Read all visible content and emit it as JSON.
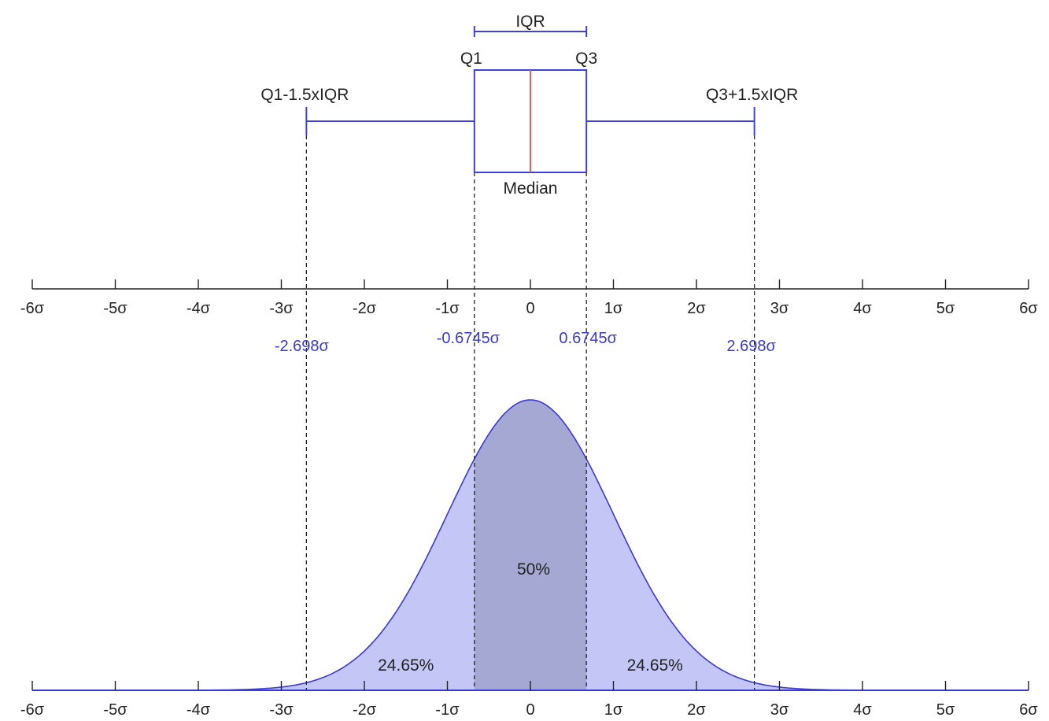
{
  "colors": {
    "box": "#3f3fe6",
    "median": "#e06060",
    "tail_fill": "#c4c6f5",
    "iqr_fill": "#a6a8d4",
    "curve": "#3a3ad6",
    "axis": "#222222",
    "guide": "#222222"
  },
  "boxplot": {
    "iqr_label": "IQR",
    "q1_label": "Q1",
    "q3_label": "Q3",
    "lower_whisker_label": "Q1-1.5xIQR",
    "upper_whisker_label": "Q3+1.5xIQR",
    "median_label": "Median",
    "q1": -0.6745,
    "median": 0,
    "q3": 0.6745,
    "lower_whisker": -2.698,
    "upper_whisker": 2.698
  },
  "axis_ticks": [
    "-6σ",
    "-5σ",
    "-4σ",
    "-3σ",
    "-2σ",
    "-1σ",
    "0",
    "1σ",
    "2σ",
    "3σ",
    "4σ",
    "5σ",
    "6σ"
  ],
  "bottom_axis_ticks": [
    "-6σ",
    "-5σ",
    "-4σ",
    "-3σ",
    "-2σ",
    "-1σ",
    "0",
    "1σ",
    "2σ",
    "3σ",
    "4σ",
    "5σ",
    "6σ"
  ],
  "markers": {
    "lower_fence": "-2.698σ",
    "q1": "-0.6745σ",
    "q3": "0.6745σ",
    "upper_fence": "2.698σ"
  },
  "distribution": {
    "type": "normal",
    "mean": 0,
    "sd": 1,
    "x_range": [
      -6,
      6
    ],
    "center_label": "50%",
    "left_tail_label": "24.65%",
    "right_tail_label": "24.65%"
  }
}
